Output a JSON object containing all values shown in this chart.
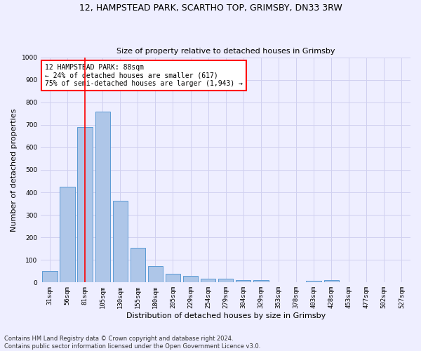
{
  "title_line1": "12, HAMPSTEAD PARK, SCARTHO TOP, GRIMSBY, DN33 3RW",
  "title_line2": "Size of property relative to detached houses in Grimsby",
  "xlabel": "Distribution of detached houses by size in Grimsby",
  "ylabel": "Number of detached properties",
  "footnote": "Contains HM Land Registry data © Crown copyright and database right 2024.\nContains public sector information licensed under the Open Government Licence v3.0.",
  "bar_labels": [
    "31sqm",
    "56sqm",
    "81sqm",
    "105sqm",
    "130sqm",
    "155sqm",
    "180sqm",
    "205sqm",
    "229sqm",
    "254sqm",
    "279sqm",
    "304sqm",
    "329sqm",
    "353sqm",
    "378sqm",
    "403sqm",
    "428sqm",
    "453sqm",
    "477sqm",
    "502sqm",
    "527sqm"
  ],
  "bar_values": [
    52,
    425,
    690,
    760,
    362,
    155,
    74,
    40,
    28,
    18,
    18,
    10,
    10,
    0,
    0,
    8,
    10,
    0,
    0,
    0,
    0
  ],
  "bar_color": "#aec6e8",
  "bar_edge_color": "#5b9bd5",
  "grid_color": "#d0d0f0",
  "vline_x_index": 2,
  "vline_color": "red",
  "annotation_text": "12 HAMPSTEAD PARK: 88sqm\n← 24% of detached houses are smaller (617)\n75% of semi-detached houses are larger (1,943) →",
  "annotation_box_color": "white",
  "annotation_box_edge_color": "red",
  "ylim": [
    0,
    1000
  ],
  "yticks": [
    0,
    100,
    200,
    300,
    400,
    500,
    600,
    700,
    800,
    900,
    1000
  ],
  "background_color": "#eeeeff",
  "title1_fontsize": 9,
  "title2_fontsize": 8,
  "ylabel_fontsize": 8,
  "xlabel_fontsize": 8,
  "tick_fontsize": 6.5,
  "footnote_fontsize": 6,
  "annotation_fontsize": 7
}
